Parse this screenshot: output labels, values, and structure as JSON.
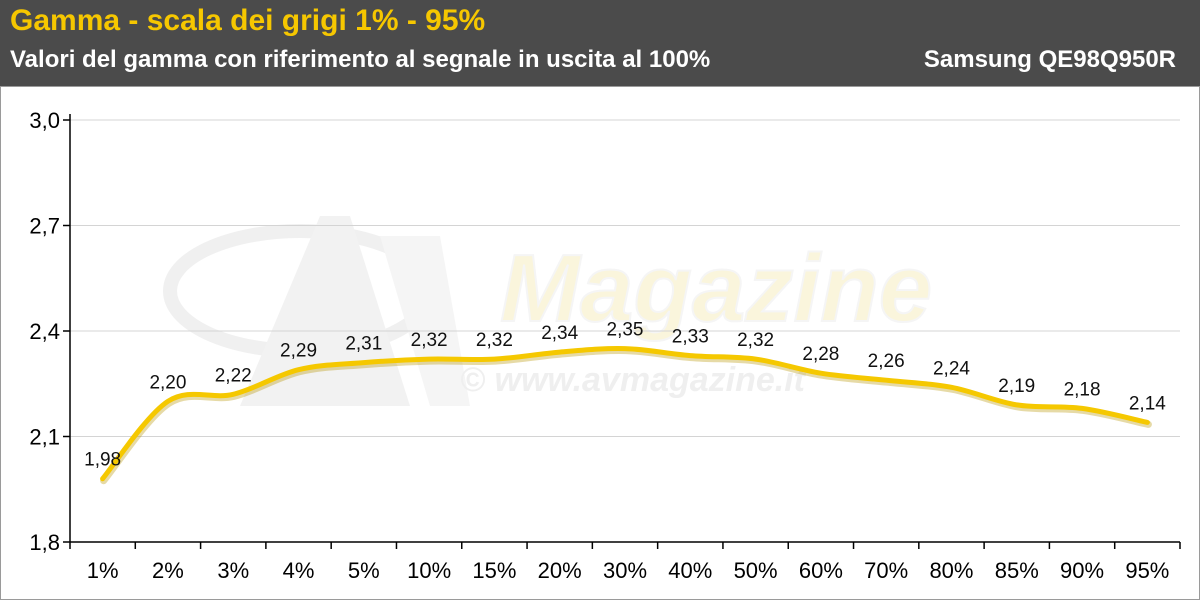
{
  "header": {
    "title": "Gamma - scala dei grigi 1% - 95%",
    "subtitle": "Valori del gamma con riferimento al segnale in uscita al 100%",
    "model": "Samsung QE98Q950R"
  },
  "watermark": {
    "brand": "Magazine",
    "url": "© www.avmagazine.it"
  },
  "colors": {
    "header_bg": "#4b4b4b",
    "title": "#f6c700",
    "series_line": "#f5c800",
    "grid": "#d4d4d4"
  },
  "chart_data": {
    "type": "line",
    "categories": [
      "1%",
      "2%",
      "3%",
      "4%",
      "5%",
      "10%",
      "15%",
      "20%",
      "30%",
      "40%",
      "50%",
      "60%",
      "70%",
      "80%",
      "85%",
      "90%",
      "95%"
    ],
    "values": [
      1.98,
      2.2,
      2.22,
      2.29,
      2.31,
      2.32,
      2.32,
      2.34,
      2.35,
      2.33,
      2.32,
      2.28,
      2.26,
      2.24,
      2.19,
      2.18,
      2.14
    ],
    "data_labels": [
      "1,98",
      "2,20",
      "2,22",
      "2,29",
      "2,31",
      "2,32",
      "2,32",
      "2,34",
      "2,35",
      "2,33",
      "2,32",
      "2,28",
      "2,26",
      "2,24",
      "2,19",
      "2,18",
      "2,14"
    ],
    "yticks": [
      1.8,
      2.1,
      2.4,
      2.7,
      3.0
    ],
    "ytick_labels": [
      "1,8",
      "2,1",
      "2,4",
      "2,7",
      "3,0"
    ],
    "ylim": [
      1.8,
      3.0
    ],
    "grid": true,
    "legend": "none",
    "title": "Gamma - scala dei grigi 1% - 95%",
    "xlabel": "",
    "ylabel": ""
  }
}
